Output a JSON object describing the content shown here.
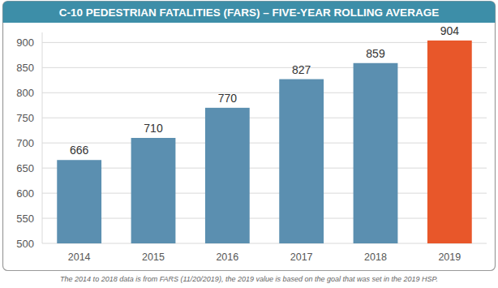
{
  "chart_data": {
    "type": "bar",
    "title": "C-10 PEDESTRIAN FATALITIES (FARS) – FIVE-YEAR ROLLING AVERAGE",
    "categories": [
      "2014",
      "2015",
      "2016",
      "2017",
      "2018",
      "2019"
    ],
    "values": [
      666,
      710,
      770,
      827,
      859,
      904
    ],
    "colors": [
      "#5b8fb0",
      "#5b8fb0",
      "#5b8fb0",
      "#5b8fb0",
      "#5b8fb0",
      "#e8572a"
    ],
    "ylim": [
      500,
      920
    ],
    "yticks": [
      500,
      550,
      600,
      650,
      700,
      750,
      800,
      850,
      900
    ],
    "grid": true,
    "data_labels": true,
    "caption": "The 2014 to 2018 data is from FARS (11/20/2019), the 2019 value is based on the goal that was set in the 2019 HSP."
  }
}
